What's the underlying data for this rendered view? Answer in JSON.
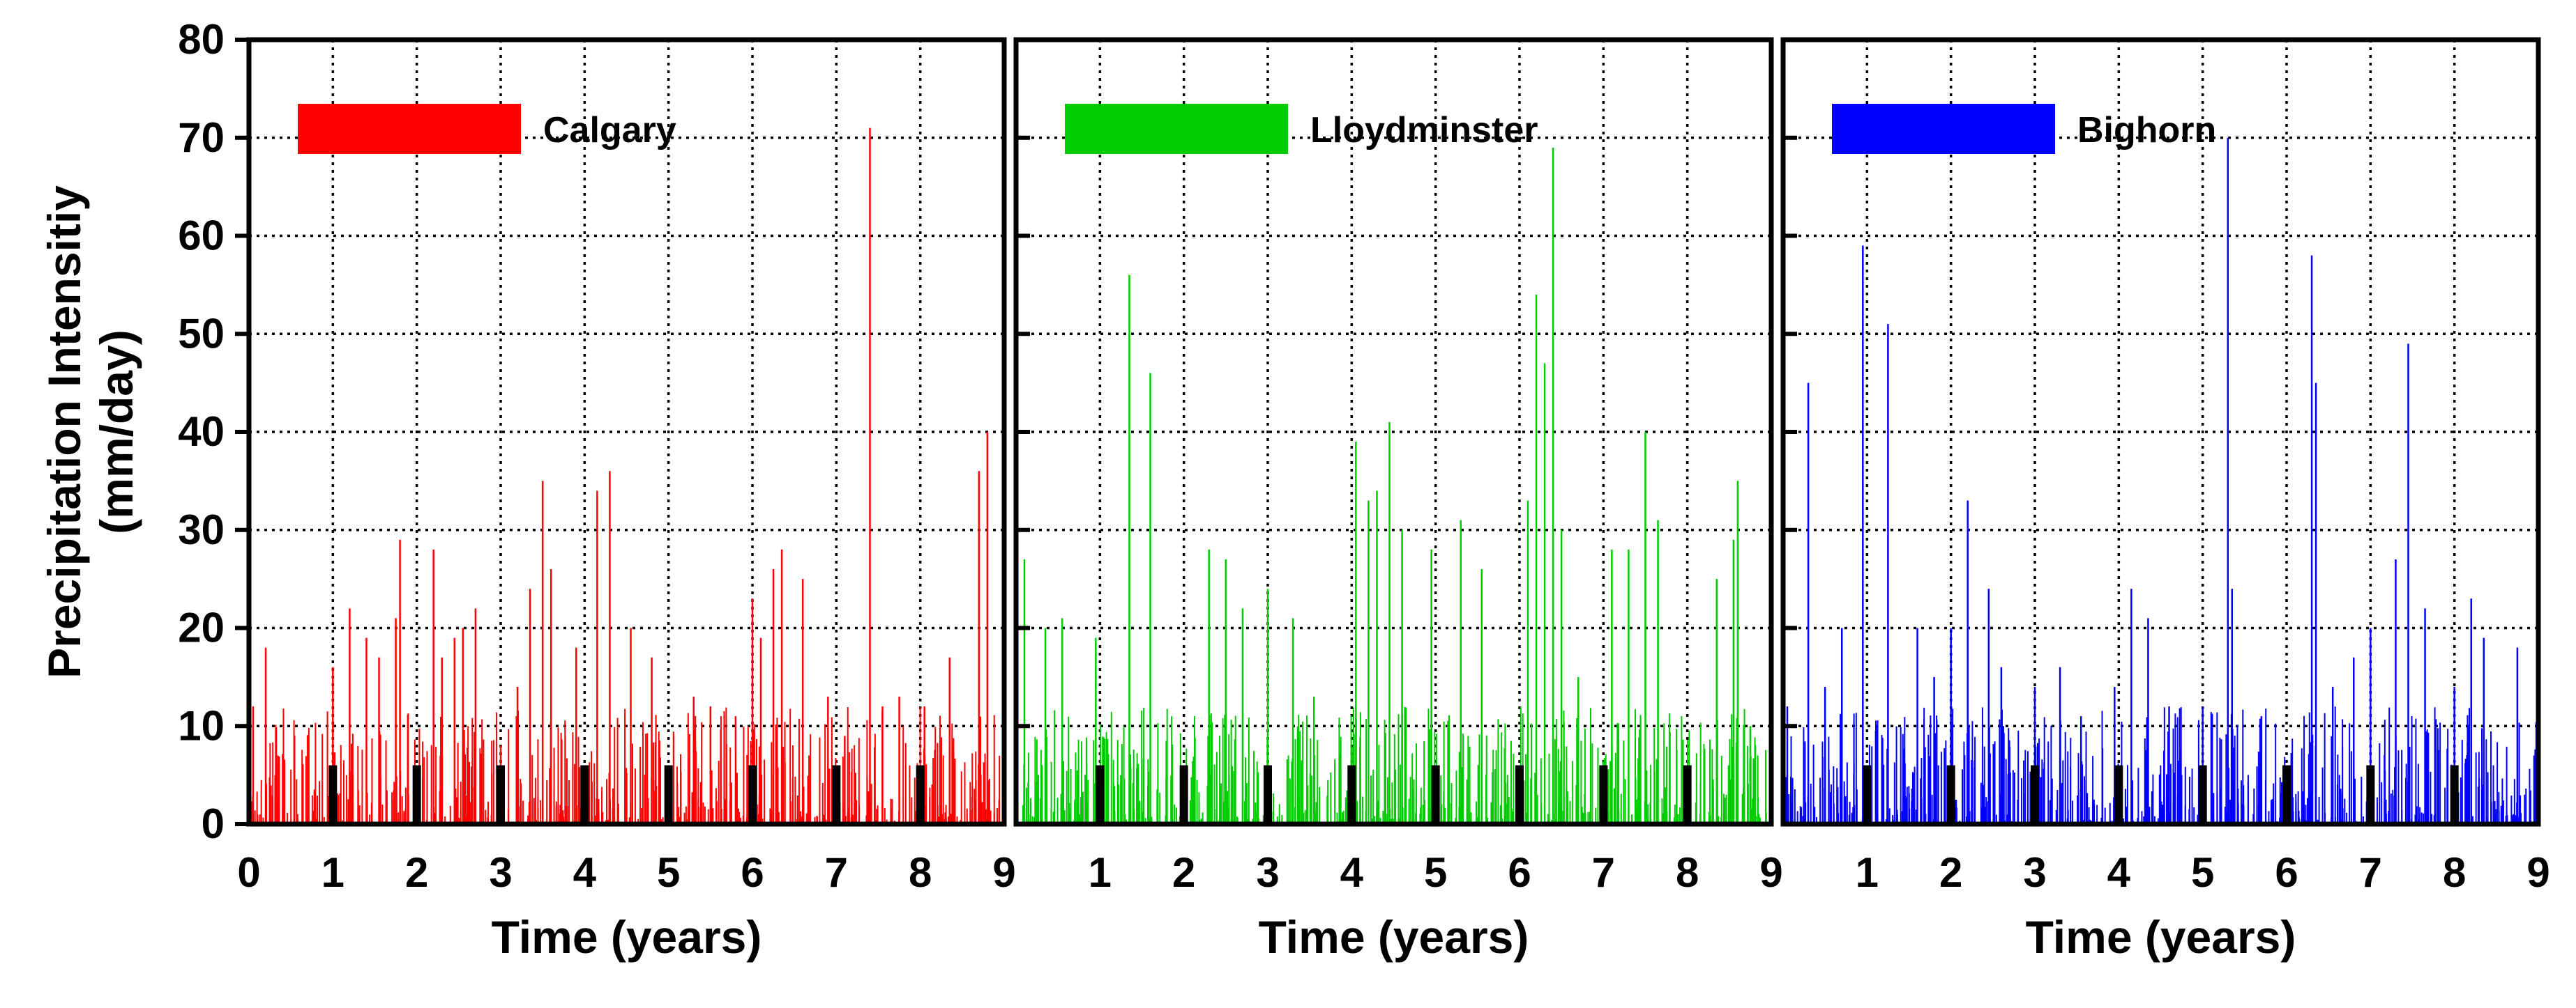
{
  "figure": {
    "ylabel_line1": "Precipitation Intensitiy",
    "ylabel_line2": "(mm/day)",
    "xlabel": "Time (years)"
  },
  "chart_data": [
    {
      "type": "line",
      "title": "",
      "xlabel": "Time (years)",
      "ylabel": "Precipitation Intensitiy (mm/day)",
      "xlim": [
        0,
        9
      ],
      "ylim": [
        0,
        80
      ],
      "x_ticks": [
        "0",
        "1",
        "2",
        "3",
        "4",
        "5",
        "6",
        "7",
        "8",
        "9"
      ],
      "y_ticks": [
        "0",
        "10",
        "20",
        "30",
        "40",
        "50",
        "60",
        "70",
        "80"
      ],
      "grid": true,
      "legend_position": "top-left",
      "series": [
        {
          "name": "Calgary",
          "color": "#ff0000",
          "peaks": [
            [
              0.05,
              12
            ],
            [
              0.2,
              18
            ],
            [
              1.0,
              16
            ],
            [
              1.2,
              22
            ],
            [
              1.4,
              19
            ],
            [
              1.55,
              17
            ],
            [
              1.75,
              21
            ],
            [
              1.8,
              29
            ],
            [
              2.2,
              28
            ],
            [
              2.3,
              17
            ],
            [
              2.45,
              19
            ],
            [
              2.55,
              20
            ],
            [
              2.7,
              22
            ],
            [
              3.0,
              8
            ],
            [
              3.2,
              14
            ],
            [
              3.35,
              24
            ],
            [
              3.5,
              35
            ],
            [
              3.6,
              26
            ],
            [
              3.9,
              18
            ],
            [
              4.15,
              34
            ],
            [
              4.3,
              36
            ],
            [
              4.55,
              20
            ],
            [
              4.8,
              17
            ],
            [
              5.3,
              13
            ],
            [
              5.5,
              12
            ],
            [
              5.8,
              11
            ],
            [
              6.0,
              23
            ],
            [
              6.1,
              19
            ],
            [
              6.25,
              26
            ],
            [
              6.35,
              28
            ],
            [
              6.6,
              25
            ],
            [
              6.9,
              13
            ],
            [
              7.1,
              9
            ],
            [
              7.4,
              71
            ],
            [
              7.55,
              12
            ],
            [
              7.75,
              13
            ],
            [
              8.05,
              12
            ],
            [
              8.35,
              17
            ],
            [
              8.7,
              36
            ],
            [
              8.8,
              40
            ]
          ]
        }
      ]
    },
    {
      "type": "line",
      "title": "",
      "xlabel": "Time (years)",
      "ylabel": "Precipitation Intensitiy (mm/day)",
      "xlim": [
        0,
        9
      ],
      "ylim": [
        0,
        80
      ],
      "x_ticks": [
        "1",
        "2",
        "3",
        "4",
        "5",
        "6",
        "7",
        "8",
        "9"
      ],
      "grid": true,
      "legend_position": "top-left",
      "series": [
        {
          "name": "Lloydminster",
          "color": "#00cc00",
          "peaks": [
            [
              0.1,
              27
            ],
            [
              0.35,
              20
            ],
            [
              0.55,
              21
            ],
            [
              0.95,
              19
            ],
            [
              1.35,
              56
            ],
            [
              1.6,
              46
            ],
            [
              2.3,
              28
            ],
            [
              2.5,
              27
            ],
            [
              2.7,
              22
            ],
            [
              3.0,
              24
            ],
            [
              3.3,
              21
            ],
            [
              3.55,
              13
            ],
            [
              4.05,
              39
            ],
            [
              4.2,
              33
            ],
            [
              4.3,
              34
            ],
            [
              4.45,
              41
            ],
            [
              4.6,
              30
            ],
            [
              4.95,
              28
            ],
            [
              5.3,
              31
            ],
            [
              5.55,
              26
            ],
            [
              6.1,
              33
            ],
            [
              6.2,
              54
            ],
            [
              6.3,
              47
            ],
            [
              6.4,
              69
            ],
            [
              6.5,
              30
            ],
            [
              6.7,
              15
            ],
            [
              7.1,
              28
            ],
            [
              7.3,
              28
            ],
            [
              7.5,
              40
            ],
            [
              7.65,
              31
            ],
            [
              8.35,
              25
            ],
            [
              8.55,
              29
            ],
            [
              8.6,
              35
            ],
            [
              8.75,
              10
            ]
          ]
        }
      ]
    },
    {
      "type": "line",
      "title": "",
      "xlabel": "Time (years)",
      "ylabel": "Precipitation Intensitiy (mm/day)",
      "xlim": [
        0,
        9
      ],
      "ylim": [
        0,
        80
      ],
      "x_ticks": [
        "1",
        "2",
        "3",
        "4",
        "5",
        "6",
        "7",
        "8",
        "9"
      ],
      "grid": true,
      "legend_position": "top-left",
      "series": [
        {
          "name": "Bighorn",
          "color": "#0000ff",
          "peaks": [
            [
              0.05,
              12
            ],
            [
              0.3,
              45
            ],
            [
              0.5,
              14
            ],
            [
              0.7,
              20
            ],
            [
              0.95,
              59
            ],
            [
              1.25,
              51
            ],
            [
              1.6,
              20
            ],
            [
              1.8,
              15
            ],
            [
              2.0,
              20
            ],
            [
              2.2,
              33
            ],
            [
              2.45,
              24
            ],
            [
              2.6,
              16
            ],
            [
              3.0,
              14
            ],
            [
              3.3,
              16
            ],
            [
              3.55,
              11
            ],
            [
              3.95,
              14
            ],
            [
              4.15,
              24
            ],
            [
              4.35,
              21
            ],
            [
              4.6,
              12
            ],
            [
              5.0,
              12
            ],
            [
              5.3,
              70
            ],
            [
              5.35,
              24
            ],
            [
              5.7,
              11
            ],
            [
              6.3,
              58
            ],
            [
              6.35,
              45
            ],
            [
              6.55,
              14
            ],
            [
              6.8,
              17
            ],
            [
              7.0,
              20
            ],
            [
              7.3,
              27
            ],
            [
              7.45,
              49
            ],
            [
              7.65,
              22
            ],
            [
              8.0,
              14
            ],
            [
              8.2,
              23
            ],
            [
              8.35,
              19
            ],
            [
              8.75,
              18
            ],
            [
              8.95,
              7
            ]
          ]
        }
      ]
    }
  ]
}
